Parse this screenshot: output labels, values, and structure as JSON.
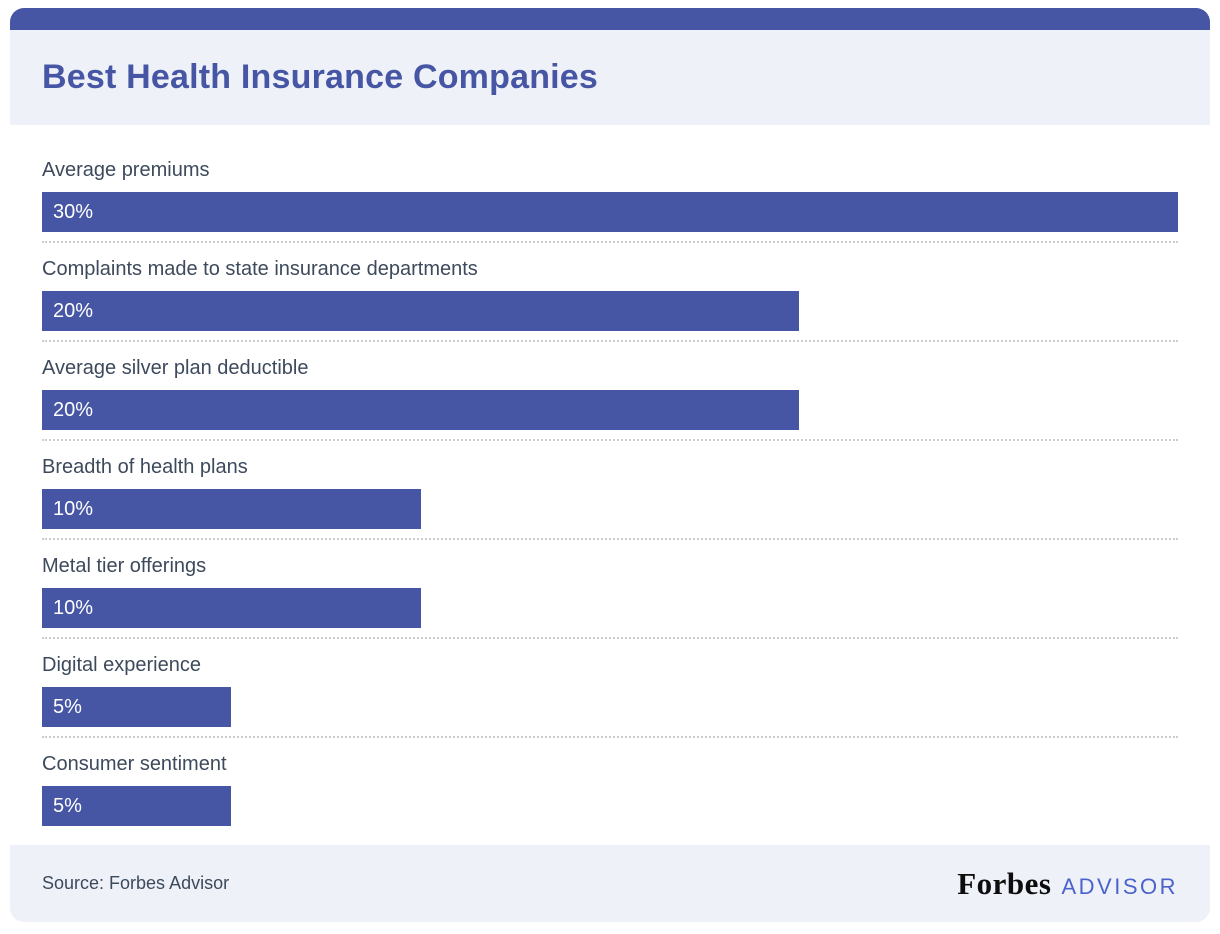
{
  "theme": {
    "accent": "#4656a4",
    "accent_text": "#4656a4",
    "panel_bg": "#eef1f8",
    "label_color": "#3d4a5c",
    "advisor_blue": "#4a63cc"
  },
  "header": {
    "title": "Best Health Insurance Companies"
  },
  "chart_data": {
    "type": "bar",
    "orientation": "horizontal",
    "title": "Best Health Insurance Companies",
    "categories": [
      "Average premiums",
      "Complaints made to state insurance departments",
      "Average silver plan deductible",
      "Breadth of health plans",
      "Metal tier offerings",
      "Digital experience",
      "Consumer sentiment"
    ],
    "values": [
      30,
      20,
      20,
      10,
      10,
      5,
      5
    ],
    "value_labels": [
      "30%",
      "20%",
      "20%",
      "10%",
      "10%",
      "5%",
      "5%"
    ],
    "xlabel": "",
    "ylabel": "",
    "xlim": [
      0,
      30
    ],
    "unit": "percent",
    "grid": false,
    "legend": "none",
    "bar_color": "#4656a4",
    "value_label_position": "inside-left"
  },
  "footer": {
    "source_label": "Source: Forbes Advisor",
    "brand_forbes": "Forbes",
    "brand_advisor": "ADVISOR"
  }
}
